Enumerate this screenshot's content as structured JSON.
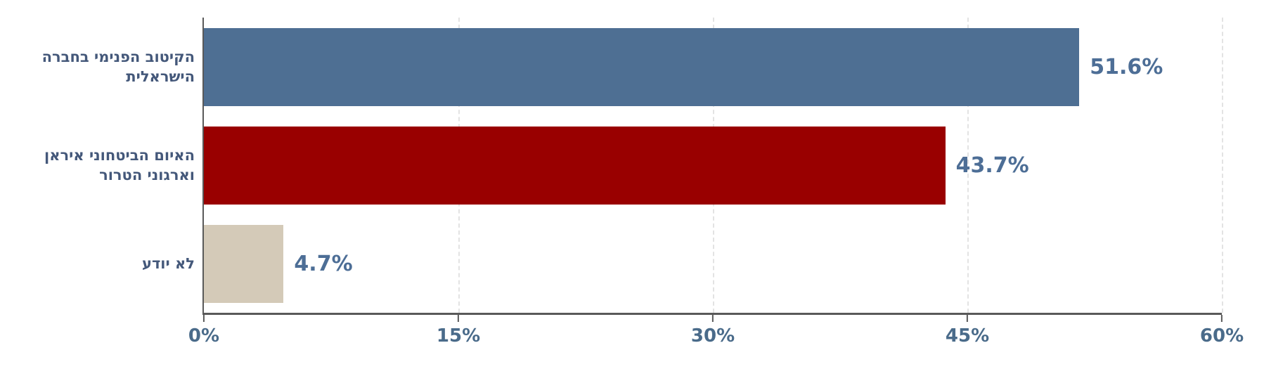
{
  "chart_data": {
    "type": "bar",
    "orientation": "horizontal",
    "title": "",
    "categories": [
      "הקיטוב הפנימי בחברה הישראלית",
      "האיום הביטחוני איראן וארגוני הטרור",
      "לא יודע"
    ],
    "values": [
      51.6,
      43.7,
      4.7
    ],
    "value_labels": [
      "51.6%",
      "43.7%",
      "4.7%"
    ],
    "bar_colors": [
      "#4E6F93",
      "#990000",
      "#D4CAB8"
    ],
    "xlim": [
      0,
      60
    ],
    "x_ticks": [
      {
        "value": 0,
        "label": "0%"
      },
      {
        "value": 15,
        "label": "15%"
      },
      {
        "value": 30,
        "label": "30%"
      },
      {
        "value": 45,
        "label": "45%"
      },
      {
        "value": 60,
        "label": "60%"
      }
    ],
    "grid": "vertical-dashed-at-ticks",
    "legend": "none"
  },
  "colors": {
    "background": "#FFFFFF",
    "axis": "#595959",
    "gridline": "#E3E3E3",
    "category_label": "#44587A",
    "value_label": "#4D6E96",
    "tick_label": "#4A6B8A"
  }
}
